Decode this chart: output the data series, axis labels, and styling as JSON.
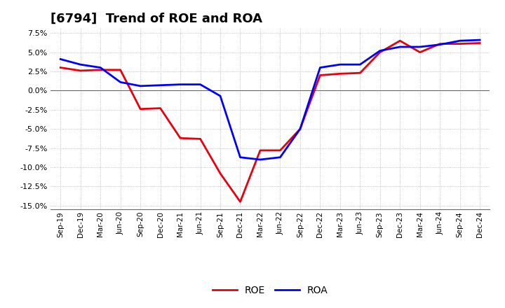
{
  "title": "[6794]  Trend of ROE and ROA",
  "labels": [
    "Sep-19",
    "Dec-19",
    "Mar-20",
    "Jun-20",
    "Sep-20",
    "Dec-20",
    "Mar-21",
    "Jun-21",
    "Sep-21",
    "Dec-21",
    "Mar-22",
    "Jun-22",
    "Sep-22",
    "Dec-22",
    "Mar-23",
    "Jun-23",
    "Sep-23",
    "Dec-23",
    "Mar-24",
    "Jun-24",
    "Sep-24",
    "Dec-24"
  ],
  "ROE": [
    3.0,
    2.6,
    2.7,
    2.7,
    -2.4,
    -2.3,
    -6.2,
    -6.3,
    -10.8,
    -14.5,
    -7.8,
    -7.8,
    -5.0,
    2.0,
    2.2,
    2.3,
    5.0,
    6.5,
    5.0,
    6.1,
    6.1,
    6.2
  ],
  "ROA": [
    4.1,
    3.4,
    3.0,
    1.1,
    0.6,
    0.7,
    0.8,
    0.8,
    -0.7,
    -8.7,
    -9.0,
    -8.7,
    -5.0,
    3.0,
    3.4,
    3.4,
    5.2,
    5.7,
    5.7,
    6.0,
    6.5,
    6.6
  ],
  "ROE_color": "#e8000d",
  "ROA_color": "#0000ff",
  "background_color": "#ffffff",
  "ylim": [
    -15.5,
    8.2
  ],
  "yticks": [
    -15.0,
    -12.5,
    -10.0,
    -7.5,
    -5.0,
    -2.5,
    0.0,
    2.5,
    5.0,
    7.5
  ],
  "grid_color": "#b0b0b0",
  "line_width": 2.0,
  "title_fontsize": 13
}
